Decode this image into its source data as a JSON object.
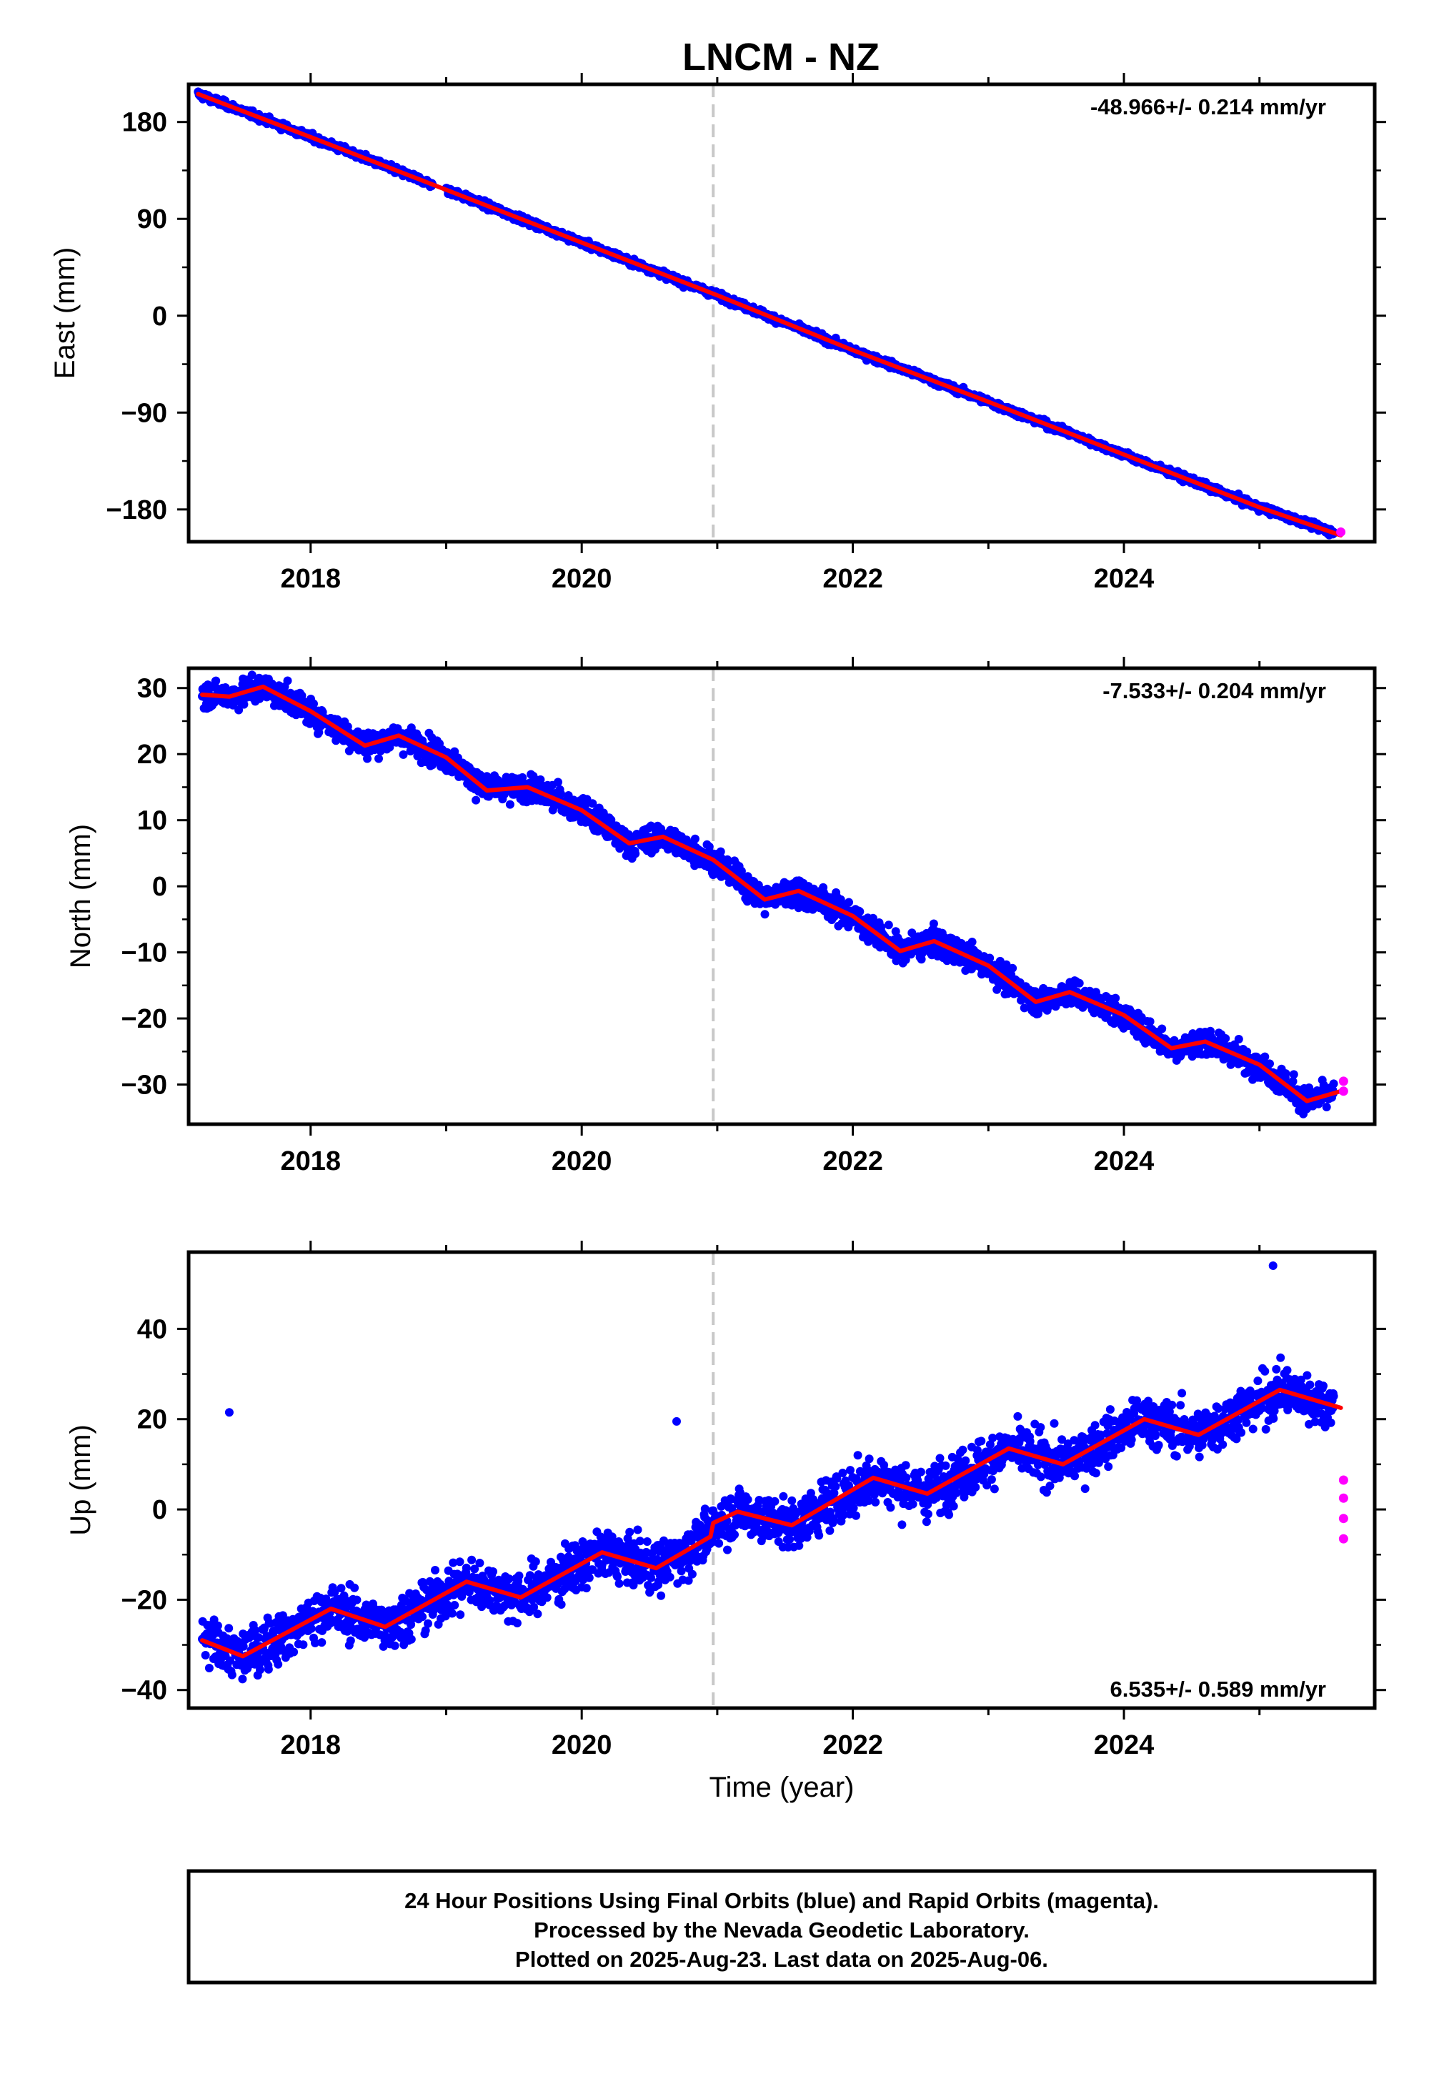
{
  "title": "LNCM - NZ",
  "footer_lines": [
    "24 Hour Positions Using Final Orbits (blue) and Rapid Orbits (magenta).",
    "Processed by the Nevada Geodetic Laboratory.",
    "Plotted on 2025-Aug-23. Last data on 2025-Aug-06."
  ],
  "colors": {
    "final_orbits": "#0000ff",
    "rapid_orbits": "#ff00ff",
    "model_fit": "#ff0000",
    "event_line": "#c8c8c8"
  },
  "chart_data": [
    {
      "type": "scatter",
      "ylabel": "East (mm)",
      "xlabel": "",
      "xlim": [
        2017.1,
        2025.85
      ],
      "ylim": [
        -210,
        215
      ],
      "x_ticks": [
        2018,
        2020,
        2022,
        2024
      ],
      "y_ticks": [
        180,
        90,
        0,
        -90,
        -180
      ],
      "rate_label": "-48.966+/- 0.214 mm/yr",
      "rate_position": "top-right",
      "event_line_x": 2020.97,
      "series": [
        {
          "color": "#0000ff",
          "x_start": 2017.17,
          "x_end": 2025.55,
          "points": [
            [
              2017.17,
              205
            ],
            [
              2017.5,
              193
            ],
            [
              2018.0,
              169
            ],
            [
              2018.5,
              147
            ],
            [
              2018.9,
              123
            ],
            [
              2019.5,
              97
            ],
            [
              2020.0,
              67
            ],
            [
              2020.5,
              42
            ],
            [
              2021.0,
              18
            ],
            [
              2021.5,
              -6
            ],
            [
              2022.0,
              -33
            ],
            [
              2022.5,
              -53
            ],
            [
              2023.0,
              -81
            ],
            [
              2023.5,
              -104
            ],
            [
              2024.0,
              -131
            ],
            [
              2024.5,
              -153
            ],
            [
              2025.0,
              -180
            ],
            [
              2025.55,
              -198
            ]
          ]
        },
        {
          "color": "#ff00ff",
          "points": [
            [
              2025.6,
              -201
            ]
          ]
        }
      ],
      "model": {
        "color": "#ff0000",
        "points": [
          [
            2017.17,
            206
          ],
          [
            2018.0,
            166
          ],
          [
            2019.0,
            117
          ],
          [
            2020.0,
            68
          ],
          [
            2021.0,
            19
          ],
          [
            2022.0,
            -32
          ],
          [
            2023.0,
            -80
          ],
          [
            2024.0,
            -129
          ],
          [
            2025.0,
            -178
          ],
          [
            2025.6,
            -204
          ]
        ]
      }
    },
    {
      "type": "scatter",
      "ylabel": "North (mm)",
      "xlabel": "",
      "xlim": [
        2017.1,
        2025.85
      ],
      "ylim": [
        -36,
        33
      ],
      "x_ticks": [
        2018,
        2020,
        2022,
        2024
      ],
      "y_ticks": [
        30,
        20,
        10,
        0,
        -10,
        -20,
        -30
      ],
      "rate_label": "-7.533+/- 0.204 mm/yr",
      "rate_position": "top-right",
      "event_line_x": 2020.97,
      "series": [
        {
          "color": "#0000ff",
          "points": [
            [
              2017.2,
              29
            ],
            [
              2017.6,
              30.5
            ],
            [
              2018.0,
              26
            ],
            [
              2018.3,
              22
            ],
            [
              2018.6,
              23
            ],
            [
              2018.9,
              20
            ],
            [
              2019.2,
              16
            ],
            [
              2019.6,
              15
            ],
            [
              2019.9,
              12
            ],
            [
              2020.3,
              6.5
            ],
            [
              2020.6,
              8
            ],
            [
              2020.9,
              4
            ],
            [
              2021.3,
              -2
            ],
            [
              2021.6,
              -0.5
            ],
            [
              2022.0,
              -4
            ],
            [
              2022.3,
              -9.5
            ],
            [
              2022.6,
              -8
            ],
            [
              2023.0,
              -12
            ],
            [
              2023.4,
              -17.5
            ],
            [
              2023.7,
              -16
            ],
            [
              2024.0,
              -19
            ],
            [
              2024.4,
              -24
            ],
            [
              2024.7,
              -23
            ],
            [
              2025.0,
              -26
            ],
            [
              2025.3,
              -32
            ],
            [
              2025.55,
              -30
            ]
          ]
        },
        {
          "color": "#ff00ff",
          "points": [
            [
              2025.62,
              -29.5
            ],
            [
              2025.62,
              -31
            ]
          ]
        }
      ],
      "model": {
        "color": "#ff0000",
        "points": [
          [
            2017.2,
            29
          ],
          [
            2017.4,
            28.7
          ],
          [
            2017.65,
            30.2
          ],
          [
            2018.0,
            26.5
          ],
          [
            2018.4,
            21.3
          ],
          [
            2018.65,
            22.8
          ],
          [
            2019.0,
            19.5
          ],
          [
            2019.3,
            14.5
          ],
          [
            2019.6,
            15
          ],
          [
            2020.0,
            11.5
          ],
          [
            2020.35,
            6.5
          ],
          [
            2020.6,
            7.5
          ],
          [
            2020.97,
            4
          ],
          [
            2021.35,
            -2
          ],
          [
            2021.6,
            -0.7
          ],
          [
            2022.0,
            -4.5
          ],
          [
            2022.35,
            -9.8
          ],
          [
            2022.6,
            -8.3
          ],
          [
            2023.0,
            -12
          ],
          [
            2023.35,
            -17.5
          ],
          [
            2023.6,
            -16
          ],
          [
            2024.0,
            -19.5
          ],
          [
            2024.35,
            -24.5
          ],
          [
            2024.6,
            -23.5
          ],
          [
            2025.0,
            -27
          ],
          [
            2025.35,
            -32.5
          ],
          [
            2025.6,
            -31
          ]
        ]
      }
    },
    {
      "type": "scatter",
      "ylabel": "Up (mm)",
      "xlabel": "Time (year)",
      "xlim": [
        2017.1,
        2025.85
      ],
      "ylim": [
        -44,
        57
      ],
      "x_ticks": [
        2018,
        2020,
        2022,
        2024
      ],
      "y_ticks": [
        40,
        20,
        0,
        -20,
        -40
      ],
      "rate_label": "6.535+/- 0.589 mm/yr",
      "rate_position": "bottom-right",
      "event_line_x": 2020.97,
      "series": [
        {
          "color": "#0000ff",
          "points": [
            [
              2017.2,
              -29
            ],
            [
              2017.5,
              -32
            ],
            [
              2017.4,
              21.5
            ],
            [
              2018.1,
              -22
            ],
            [
              2018.5,
              -26
            ],
            [
              2019.1,
              -16
            ],
            [
              2019.5,
              -20
            ],
            [
              2020.0,
              -11
            ],
            [
              2020.5,
              -13
            ],
            [
              2020.7,
              19.5
            ],
            [
              2021.1,
              0
            ],
            [
              2021.5,
              -3
            ],
            [
              2022.1,
              7
            ],
            [
              2022.5,
              3
            ],
            [
              2023.1,
              14
            ],
            [
              2023.5,
              9
            ],
            [
              2024.1,
              20
            ],
            [
              2024.5,
              16
            ],
            [
              2025.1,
              26
            ],
            [
              2025.55,
              22
            ],
            [
              2025.1,
              54
            ]
          ]
        },
        {
          "color": "#ff00ff",
          "points": [
            [
              2025.62,
              6.5
            ],
            [
              2025.62,
              2.5
            ],
            [
              2025.62,
              -2
            ],
            [
              2025.62,
              -6.5
            ]
          ]
        }
      ],
      "model": {
        "color": "#ff0000",
        "points": [
          [
            2017.2,
            -29
          ],
          [
            2017.5,
            -32.5
          ],
          [
            2018.15,
            -22
          ],
          [
            2018.55,
            -26
          ],
          [
            2019.15,
            -16
          ],
          [
            2019.55,
            -19.5
          ],
          [
            2020.15,
            -9.5
          ],
          [
            2020.55,
            -13
          ],
          [
            2020.95,
            -6
          ],
          [
            2020.97,
            -3
          ],
          [
            2021.15,
            -0.5
          ],
          [
            2021.55,
            -3.5
          ],
          [
            2022.15,
            7
          ],
          [
            2022.55,
            3.5
          ],
          [
            2023.15,
            13.5
          ],
          [
            2023.55,
            10
          ],
          [
            2024.15,
            20
          ],
          [
            2024.55,
            16.5
          ],
          [
            2025.15,
            26.5
          ],
          [
            2025.6,
            22.5
          ]
        ]
      }
    }
  ]
}
